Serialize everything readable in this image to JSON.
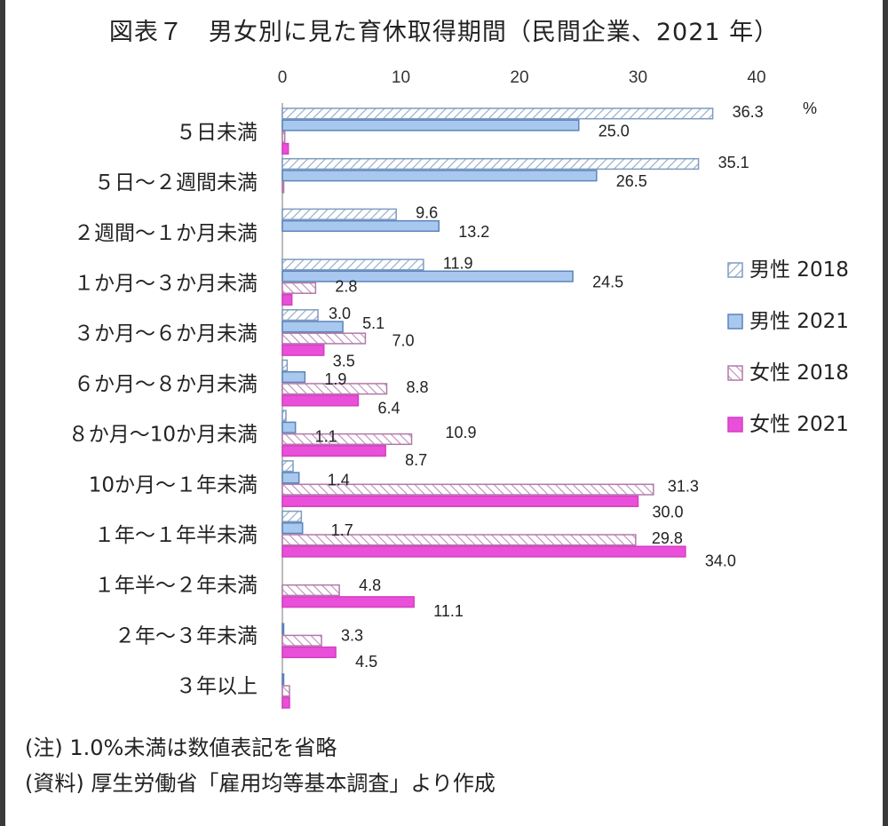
{
  "title": "図表７　男女別に見た育休取得期間（民間企業、2021 年）",
  "notes": [
    "(注) 1.0%未満は数値表記を省略",
    "(資料) 厚生労働省「雇用均等基本調査」より作成"
  ],
  "colors": {
    "male2018": "#ffffff",
    "male2021": "#a9c8ef",
    "female2018": "#ffffff",
    "female2021": "#e94fd8",
    "male_border": "#7f9bbf",
    "female_border": "#b07aa8"
  },
  "chart_data": {
    "type": "bar",
    "orientation": "horizontal",
    "title": "図表７　男女別に見た育休取得期間（民間企業、2021 年）",
    "unit": "%",
    "xlim": [
      0,
      40
    ],
    "xticks": [
      0,
      10,
      20,
      30,
      40
    ],
    "categories": [
      "５日未満",
      "５日～２週間未満",
      "２週間～１か月未満",
      "１か月～３か月未満",
      "３か月～６か月未満",
      "６か月～８か月未満",
      "８か月～10か月未満",
      "10か月～１年未満",
      "１年～１年半未満",
      "１年半～２年未満",
      "２年～３年未満",
      "３年以上"
    ],
    "series": [
      {
        "name": "男性 2018",
        "values": [
          36.3,
          35.1,
          9.6,
          11.9,
          3.0,
          0.4,
          0.3,
          0.9,
          1.6,
          0.0,
          0.0,
          0.0
        ],
        "labels": [
          "36.3",
          "35.1",
          "9.6",
          "11.9",
          "3.0",
          "",
          "",
          "",
          "",
          "",
          "",
          ""
        ]
      },
      {
        "name": "男性 2021",
        "values": [
          25.0,
          26.5,
          13.2,
          24.5,
          5.1,
          1.9,
          1.1,
          1.4,
          1.7,
          0.0,
          0.1,
          0.1
        ],
        "labels": [
          "25.0",
          "26.5",
          "13.2",
          "24.5",
          "5.1",
          "1.9",
          "1.1",
          "1.4",
          "1.7",
          "",
          "",
          ""
        ]
      },
      {
        "name": "女性 2018",
        "values": [
          0.2,
          0.1,
          0.0,
          2.8,
          7.0,
          8.8,
          10.9,
          31.3,
          29.8,
          4.8,
          3.3,
          0.6
        ],
        "labels": [
          "",
          "",
          "",
          "2.8",
          "7.0",
          "8.8",
          "10.9",
          "31.3",
          "29.8",
          "4.8",
          "3.3",
          ""
        ]
      },
      {
        "name": "女性 2021",
        "values": [
          0.5,
          0.0,
          0.0,
          0.8,
          3.5,
          6.4,
          8.7,
          30.0,
          34.0,
          11.1,
          4.5,
          0.6
        ],
        "labels": [
          "",
          "",
          "",
          "",
          "3.5",
          "6.4",
          "8.7",
          "30.0",
          "34.0",
          "11.1",
          "4.5",
          ""
        ]
      }
    ],
    "legend": "right"
  }
}
